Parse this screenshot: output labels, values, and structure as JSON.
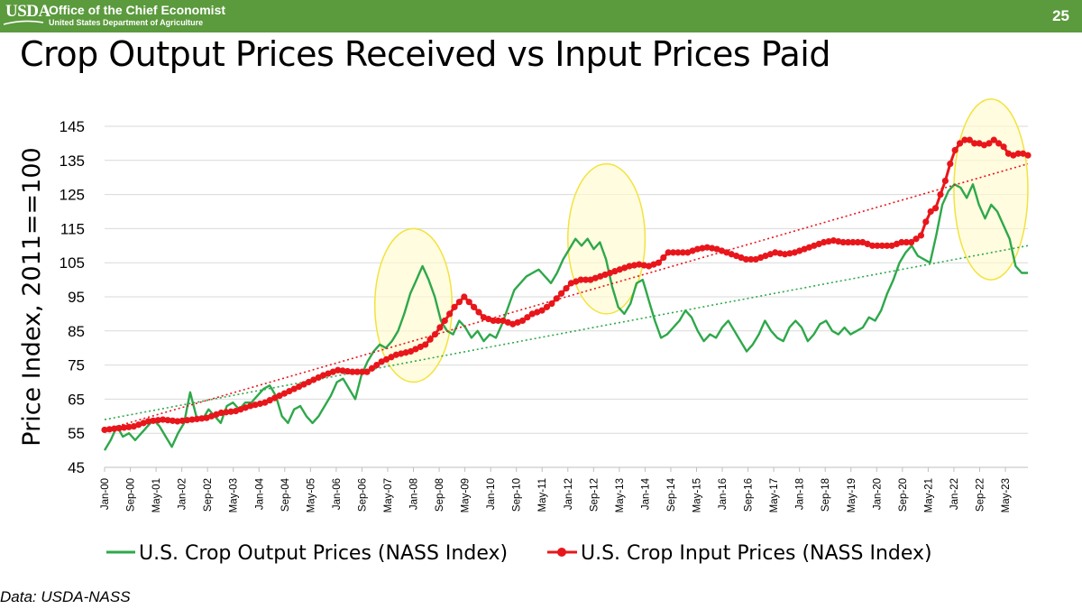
{
  "header": {
    "logo_text": "USDA",
    "office": "Office of the Chief Economist",
    "department": "United States Department of Agriculture",
    "page_number": "25",
    "bar_color": "#5b9a3d"
  },
  "slide_title": "Crop Output Prices Received vs Input Prices Paid",
  "source_note": "Data: USDA-NASS",
  "chart_data": {
    "type": "line",
    "title": "Crop Output Prices Received vs Input Prices Paid",
    "xlabel": "",
    "ylabel": "Price Index, 2011==100",
    "ylim": [
      45,
      145
    ],
    "yticks": [
      45,
      55,
      65,
      75,
      85,
      95,
      105,
      115,
      125,
      135,
      145
    ],
    "x_start": "Jan-00",
    "x_end": "Dec-23",
    "x_ticks": [
      "Jan-00",
      "Sep-00",
      "May-01",
      "Jan-02",
      "Sep-02",
      "May-03",
      "Jan-04",
      "Sep-04",
      "May-05",
      "Jan-06",
      "Sep-06",
      "May-07",
      "Jan-08",
      "Sep-08",
      "May-09",
      "Jan-10",
      "Sep-10",
      "May-11",
      "Jan-12",
      "Sep-12",
      "May-13",
      "Jan-14",
      "Sep-14",
      "May-15",
      "Jan-16",
      "Sep-16",
      "May-17",
      "Jan-18",
      "Sep-18",
      "May-19",
      "Jan-20",
      "Sep-20",
      "May-21",
      "Jan-22",
      "Sep-22",
      "May-23"
    ],
    "grid": "horizontal",
    "legend_position": "bottom",
    "series": [
      {
        "name": "U.S. Crop Output Prices (NASS Index)",
        "color": "#2ea84a",
        "marker": "none",
        "trendline": {
          "start": 59,
          "end": 110
        },
        "anchors": [
          [
            0,
            50
          ],
          [
            2,
            53
          ],
          [
            4,
            57
          ],
          [
            6,
            54
          ],
          [
            8,
            55
          ],
          [
            10,
            53
          ],
          [
            12,
            55
          ],
          [
            14,
            57
          ],
          [
            16,
            59
          ],
          [
            18,
            57
          ],
          [
            20,
            54
          ],
          [
            22,
            51
          ],
          [
            24,
            55
          ],
          [
            26,
            58
          ],
          [
            28,
            67
          ],
          [
            30,
            60
          ],
          [
            32,
            59
          ],
          [
            34,
            62
          ],
          [
            36,
            60
          ],
          [
            38,
            58
          ],
          [
            40,
            63
          ],
          [
            42,
            64
          ],
          [
            44,
            62
          ],
          [
            46,
            64
          ],
          [
            48,
            64
          ],
          [
            50,
            66
          ],
          [
            52,
            68
          ],
          [
            54,
            69
          ],
          [
            56,
            66
          ],
          [
            58,
            60
          ],
          [
            60,
            58
          ],
          [
            62,
            62
          ],
          [
            64,
            63
          ],
          [
            66,
            60
          ],
          [
            68,
            58
          ],
          [
            70,
            60
          ],
          [
            72,
            63
          ],
          [
            74,
            66
          ],
          [
            76,
            70
          ],
          [
            78,
            71
          ],
          [
            80,
            68
          ],
          [
            82,
            65
          ],
          [
            84,
            72
          ],
          [
            86,
            76
          ],
          [
            88,
            79
          ],
          [
            90,
            81
          ],
          [
            92,
            80
          ],
          [
            94,
            82
          ],
          [
            96,
            85
          ],
          [
            98,
            90
          ],
          [
            100,
            96
          ],
          [
            102,
            100
          ],
          [
            104,
            104
          ],
          [
            106,
            100
          ],
          [
            108,
            95
          ],
          [
            110,
            88
          ],
          [
            112,
            85
          ],
          [
            114,
            84
          ],
          [
            116,
            88
          ],
          [
            118,
            86
          ],
          [
            120,
            83
          ],
          [
            122,
            85
          ],
          [
            124,
            82
          ],
          [
            126,
            84
          ],
          [
            128,
            83
          ],
          [
            130,
            87
          ],
          [
            132,
            92
          ],
          [
            134,
            97
          ],
          [
            136,
            99
          ],
          [
            138,
            101
          ],
          [
            140,
            102
          ],
          [
            142,
            103
          ],
          [
            144,
            101
          ],
          [
            146,
            99
          ],
          [
            148,
            102
          ],
          [
            150,
            106
          ],
          [
            152,
            109
          ],
          [
            154,
            112
          ],
          [
            156,
            110
          ],
          [
            158,
            112
          ],
          [
            160,
            109
          ],
          [
            162,
            111
          ],
          [
            164,
            106
          ],
          [
            166,
            98
          ],
          [
            168,
            92
          ],
          [
            170,
            90
          ],
          [
            172,
            93
          ],
          [
            174,
            99
          ],
          [
            176,
            100
          ],
          [
            178,
            94
          ],
          [
            180,
            88
          ],
          [
            182,
            83
          ],
          [
            184,
            84
          ],
          [
            186,
            86
          ],
          [
            188,
            88
          ],
          [
            190,
            91
          ],
          [
            192,
            89
          ],
          [
            194,
            85
          ],
          [
            196,
            82
          ],
          [
            198,
            84
          ],
          [
            200,
            83
          ],
          [
            202,
            86
          ],
          [
            204,
            88
          ],
          [
            206,
            85
          ],
          [
            208,
            82
          ],
          [
            210,
            79
          ],
          [
            212,
            81
          ],
          [
            214,
            84
          ],
          [
            216,
            88
          ],
          [
            218,
            85
          ],
          [
            220,
            83
          ],
          [
            222,
            82
          ],
          [
            224,
            86
          ],
          [
            226,
            88
          ],
          [
            228,
            86
          ],
          [
            230,
            82
          ],
          [
            232,
            84
          ],
          [
            234,
            87
          ],
          [
            236,
            88
          ],
          [
            238,
            85
          ],
          [
            240,
            84
          ],
          [
            242,
            86
          ],
          [
            244,
            84
          ],
          [
            246,
            85
          ],
          [
            248,
            86
          ],
          [
            250,
            89
          ],
          [
            252,
            88
          ],
          [
            254,
            91
          ],
          [
            256,
            96
          ],
          [
            258,
            100
          ],
          [
            260,
            105
          ],
          [
            262,
            108
          ],
          [
            264,
            110
          ],
          [
            266,
            107
          ],
          [
            268,
            106
          ],
          [
            270,
            105
          ],
          [
            272,
            113
          ],
          [
            274,
            122
          ],
          [
            276,
            126
          ],
          [
            278,
            128
          ],
          [
            280,
            127
          ],
          [
            282,
            124
          ],
          [
            284,
            128
          ],
          [
            286,
            122
          ],
          [
            288,
            118
          ],
          [
            290,
            122
          ],
          [
            292,
            120
          ],
          [
            294,
            116
          ],
          [
            296,
            112
          ],
          [
            298,
            104
          ],
          [
            300,
            102
          ],
          [
            302,
            102
          ]
        ]
      },
      {
        "name": "U.S. Crop Input Prices (NASS Index)",
        "color": "#e8161b",
        "marker": "circle",
        "trendline": {
          "start": 56,
          "end": 134
        },
        "anchors": [
          [
            0,
            56
          ],
          [
            6,
            56.5
          ],
          [
            12,
            57
          ],
          [
            18,
            58.5
          ],
          [
            24,
            59
          ],
          [
            30,
            58.5
          ],
          [
            36,
            59
          ],
          [
            42,
            59.5
          ],
          [
            48,
            61
          ],
          [
            54,
            61.5
          ],
          [
            60,
            63
          ],
          [
            66,
            64
          ],
          [
            72,
            66
          ],
          [
            78,
            68
          ],
          [
            84,
            70
          ],
          [
            90,
            72
          ],
          [
            96,
            73.5
          ],
          [
            102,
            73
          ],
          [
            108,
            73
          ],
          [
            114,
            76
          ],
          [
            120,
            78
          ],
          [
            126,
            79
          ],
          [
            132,
            81
          ],
          [
            136,
            84
          ],
          [
            140,
            88
          ],
          [
            144,
            92
          ],
          [
            148,
            95
          ],
          [
            152,
            92
          ],
          [
            156,
            89
          ],
          [
            160,
            88
          ],
          [
            164,
            88
          ],
          [
            168,
            87
          ],
          [
            172,
            88
          ],
          [
            176,
            90
          ],
          [
            180,
            91
          ],
          [
            184,
            93
          ],
          [
            188,
            96
          ],
          [
            192,
            99
          ],
          [
            196,
            100
          ],
          [
            200,
            100
          ],
          [
            204,
            101
          ],
          [
            208,
            102
          ],
          [
            212,
            103
          ],
          [
            216,
            104
          ],
          [
            220,
            104.5
          ],
          [
            224,
            104
          ],
          [
            228,
            105
          ],
          [
            232,
            108
          ],
          [
            236,
            108
          ],
          [
            240,
            108
          ],
          [
            244,
            109
          ],
          [
            248,
            109.5
          ],
          [
            252,
            109
          ],
          [
            256,
            108
          ],
          [
            260,
            107
          ],
          [
            264,
            106
          ],
          [
            268,
            106
          ],
          [
            272,
            107
          ],
          [
            276,
            108
          ],
          [
            280,
            107.5
          ],
          [
            284,
            108
          ],
          [
            288,
            109
          ],
          [
            292,
            110
          ],
          [
            296,
            111
          ],
          [
            300,
            111.5
          ],
          [
            304,
            111
          ],
          [
            308,
            111
          ],
          [
            312,
            111
          ],
          [
            316,
            110
          ],
          [
            320,
            110
          ],
          [
            324,
            110
          ],
          [
            328,
            111
          ],
          [
            332,
            111
          ],
          [
            336,
            113
          ],
          [
            338,
            117
          ],
          [
            340,
            120
          ],
          [
            342,
            121
          ],
          [
            344,
            125
          ],
          [
            346,
            129
          ],
          [
            348,
            134
          ],
          [
            350,
            138
          ],
          [
            352,
            140
          ],
          [
            354,
            141
          ],
          [
            356,
            141
          ],
          [
            358,
            140
          ],
          [
            360,
            140
          ],
          [
            362,
            139.5
          ],
          [
            364,
            140
          ],
          [
            366,
            141
          ],
          [
            368,
            140
          ],
          [
            370,
            139
          ],
          [
            372,
            137
          ],
          [
            374,
            136.5
          ],
          [
            376,
            137
          ],
          [
            378,
            137
          ],
          [
            380,
            136.5
          ]
        ]
      }
    ],
    "annotations": [
      {
        "type": "highlight-ellipse",
        "covers": "Jan-07 to Jan-09",
        "y_range": [
          70,
          115
        ]
      },
      {
        "type": "highlight-ellipse",
        "covers": "Jan-12 to Jan-14",
        "y_range": [
          90,
          134
        ]
      },
      {
        "type": "highlight-ellipse",
        "covers": "Jan-22 to Dec-23",
        "y_range": [
          100,
          153
        ]
      }
    ]
  }
}
